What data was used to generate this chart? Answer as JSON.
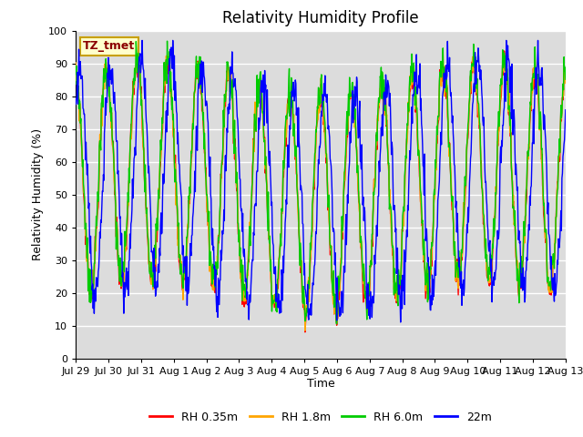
{
  "title": "Relativity Humidity Profile",
  "xlabel": "Time",
  "ylabel": "Relativity Humidity (%)",
  "ylim": [
    0,
    100
  ],
  "yticks": [
    0,
    10,
    20,
    30,
    40,
    50,
    60,
    70,
    80,
    90,
    100
  ],
  "annotation_text": "TZ_tmet",
  "annotation_color": "#8B0000",
  "annotation_bg": "#FFFFCC",
  "annotation_border": "#C8A000",
  "line_colors": {
    "RH 0.35m": "#FF0000",
    "RH 1.8m": "#FFA500",
    "RH 6.0m": "#00CC00",
    "22m": "#0000FF"
  },
  "legend_labels": [
    "RH 0.35m",
    "RH 1.8m",
    "RH 6.0m",
    "22m"
  ],
  "xtick_labels": [
    "Jul 29",
    "Jul 30",
    "Jul 31",
    "Aug 1",
    "Aug 2",
    "Aug 3",
    "Aug 4",
    "Aug 5",
    "Aug 6",
    "Aug 7",
    "Aug 8",
    "Aug 9",
    "Aug 10",
    "Aug 11",
    "Aug 12",
    "Aug 13"
  ],
  "bg_color": "#DCDCDC",
  "grid_color": "#FFFFFF",
  "title_fontsize": 12,
  "axis_label_fontsize": 9,
  "tick_fontsize": 8,
  "n_points": 960,
  "n_days": 16
}
